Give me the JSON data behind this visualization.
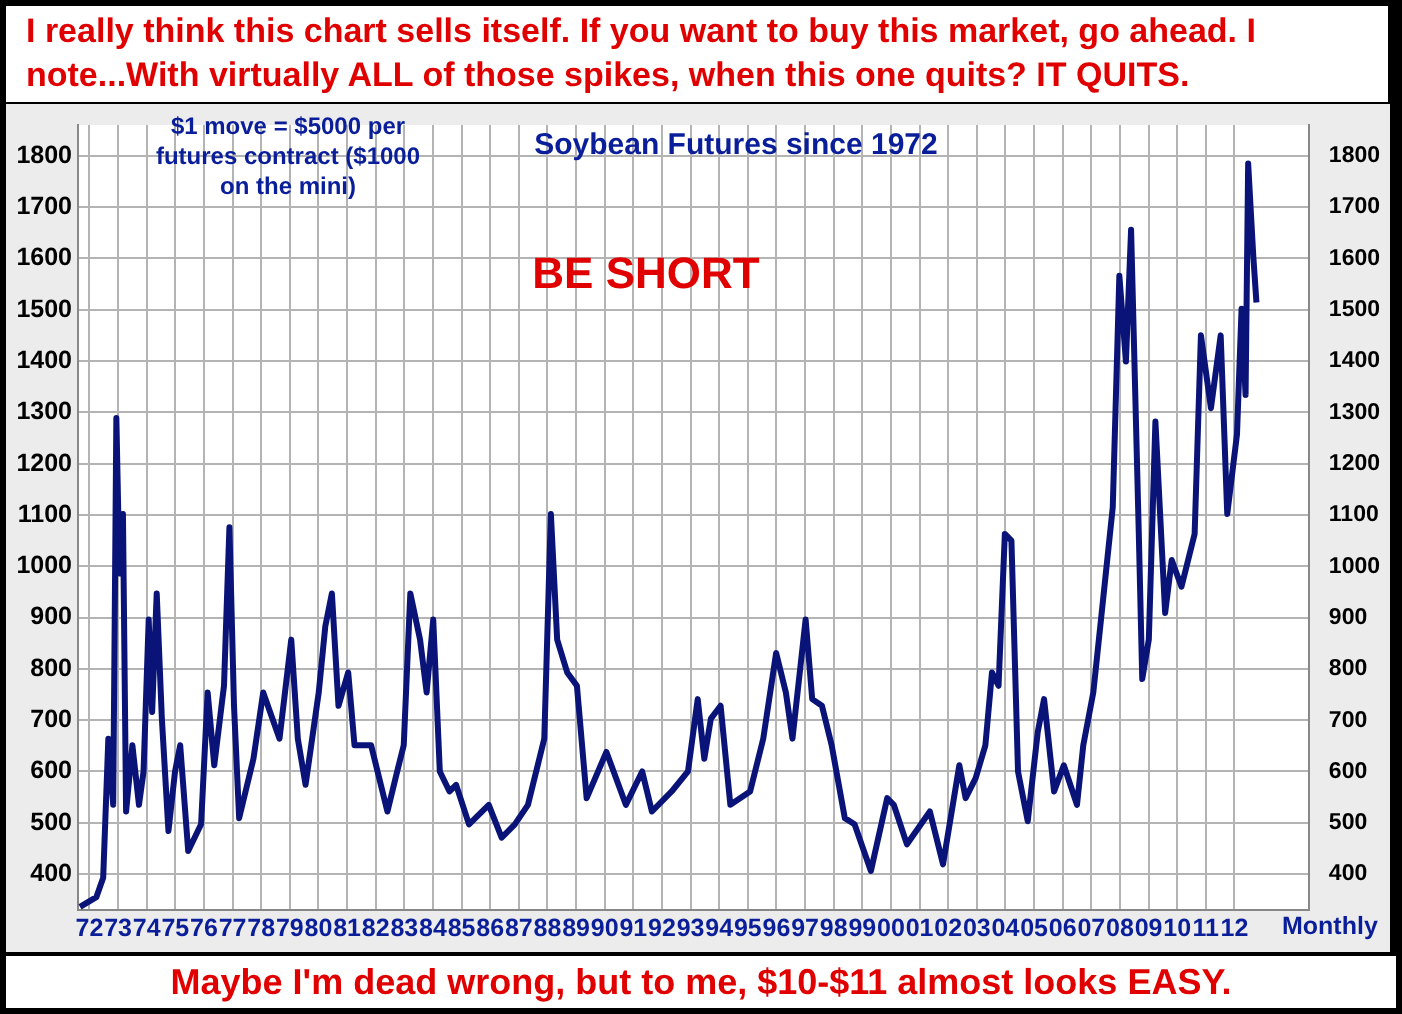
{
  "chart_data": {
    "type": "line",
    "title": "Soybean Futures since 1972",
    "xlabel": "Monthly",
    "annotations": [
      "I really think this chart sells itself. If you want to buy this market, go ahead. I note...With virtually ALL of those spikes, when this one quits? IT QUITS.",
      "$1 move = $5000 per futures contract ($1000 on the mini)",
      "BE SHORT",
      "Maybe I'm dead wrong, but to me, $10-$11 almost looks EASY."
    ],
    "series": [
      {
        "color": "#0a1478",
        "x": [
          1971.67,
          1972.24,
          1972.48,
          1972.66,
          1972.83,
          1972.94,
          1973.05,
          1973.17,
          1973.28,
          1973.5,
          1973.73,
          1973.89,
          1974.07,
          1974.19,
          1974.35,
          1974.53,
          1974.76,
          1974.99,
          1975.17,
          1975.45,
          1975.9,
          1976.13,
          1976.36,
          1976.7,
          1976.89,
          1977.05,
          1977.23,
          1977.73,
          1978.07,
          1978.64,
          1979.05,
          1979.28,
          1979.55,
          1980.01,
          1980.24,
          1980.47,
          1980.7,
          1981.04,
          1981.26,
          1981.84,
          1982.41,
          1982.75,
          1982.98,
          1983.21,
          1983.55,
          1983.78,
          1984.01,
          1984.24,
          1984.58,
          1984.81,
          1985.26,
          1985.95,
          1986.4,
          1986.86,
          1987.32,
          1987.89,
          1988.12,
          1988.34,
          1988.69,
          1989.03,
          1989.37,
          1990.06,
          1990.74,
          1991.31,
          1991.65,
          1992.34,
          1992.91,
          1993.25,
          1993.48,
          1993.71,
          1994.05,
          1994.39,
          1995.08,
          1995.54,
          1995.99,
          1996.33,
          1996.56,
          1997.02,
          1997.25,
          1997.59,
          1997.93,
          1998.39,
          1998.73,
          1999.3,
          1999.87,
          2000.1,
          2000.56,
          2001.36,
          2001.82,
          2002.39,
          2002.61,
          2002.96,
          2003.3,
          2003.53,
          2003.76,
          2003.98,
          2004.21,
          2004.44,
          2004.78,
          2005.13,
          2005.35,
          2005.7,
          2006.04,
          2006.5,
          2006.72,
          2007.07,
          2007.41,
          2007.75,
          2007.98,
          2008.21,
          2008.39,
          2008.66,
          2008.78,
          2009.01,
          2009.24,
          2009.58,
          2009.81,
          2010.15,
          2010.61,
          2010.83,
          2011.18,
          2011.52,
          2011.75,
          2012.09,
          2012.25,
          2012.39,
          2012.48,
          2012.66,
          2012.77
        ],
        "values": [
          336,
          355,
          393,
          664,
          535,
          1289,
          986,
          1102,
          522,
          651,
          535,
          600,
          896,
          716,
          947,
          703,
          484,
          600,
          651,
          445,
          497,
          754,
          612,
          767,
          1076,
          728,
          509,
          625,
          754,
          664,
          857,
          664,
          574,
          754,
          883,
          947,
          728,
          793,
          651,
          651,
          522,
          600,
          651,
          947,
          857,
          754,
          896,
          600,
          561,
          574,
          497,
          535,
          471,
          497,
          535,
          664,
          1102,
          857,
          793,
          767,
          548,
          638,
          535,
          600,
          522,
          561,
          600,
          741,
          625,
          703,
          728,
          535,
          561,
          664,
          831,
          754,
          664,
          896,
          741,
          728,
          651,
          509,
          497,
          406,
          548,
          535,
          458,
          522,
          419,
          612,
          548,
          587,
          651,
          793,
          767,
          1063,
          1050,
          600,
          503,
          677,
          741,
          561,
          612,
          535,
          651,
          754,
          934,
          1115,
          1566,
          1399,
          1656,
          1063,
          780,
          857,
          1282,
          909,
          1012,
          960,
          1063,
          1450,
          1308,
          1450,
          1102,
          1257,
          1502,
          1334,
          1785,
          1604,
          1514
        ]
      }
    ],
    "xlim": [
      1971.6,
      2014.6
    ],
    "xticks": [
      {
        "value": 1972,
        "label": "72"
      },
      {
        "value": 1973,
        "label": "73"
      },
      {
        "value": 1974,
        "label": "74"
      },
      {
        "value": 1975,
        "label": "75"
      },
      {
        "value": 1976,
        "label": "76"
      },
      {
        "value": 1977,
        "label": "77"
      },
      {
        "value": 1978,
        "label": "78"
      },
      {
        "value": 1979,
        "label": "79"
      },
      {
        "value": 1980,
        "label": "80"
      },
      {
        "value": 1981,
        "label": "81"
      },
      {
        "value": 1982,
        "label": "82"
      },
      {
        "value": 1983,
        "label": "83"
      },
      {
        "value": 1984,
        "label": "84"
      },
      {
        "value": 1985,
        "label": "85"
      },
      {
        "value": 1986,
        "label": "86"
      },
      {
        "value": 1987,
        "label": "87"
      },
      {
        "value": 1988,
        "label": "88"
      },
      {
        "value": 1989,
        "label": "89"
      },
      {
        "value": 1990,
        "label": "90"
      },
      {
        "value": 1991,
        "label": "91"
      },
      {
        "value": 1992,
        "label": "92"
      },
      {
        "value": 1993,
        "label": "93"
      },
      {
        "value": 1994,
        "label": "94"
      },
      {
        "value": 1995,
        "label": "95"
      },
      {
        "value": 1996,
        "label": "96"
      },
      {
        "value": 1997,
        "label": "97"
      },
      {
        "value": 1998,
        "label": "98"
      },
      {
        "value": 1999,
        "label": "99"
      },
      {
        "value": 2000,
        "label": "00"
      },
      {
        "value": 2001,
        "label": "01"
      },
      {
        "value": 2002,
        "label": "02"
      },
      {
        "value": 2003,
        "label": "03"
      },
      {
        "value": 2004,
        "label": "04"
      },
      {
        "value": 2005,
        "label": "05"
      },
      {
        "value": 2006,
        "label": "06"
      },
      {
        "value": 2007,
        "label": "07"
      },
      {
        "value": 2008,
        "label": "08"
      },
      {
        "value": 2009,
        "label": "09"
      },
      {
        "value": 2010,
        "label": "10"
      },
      {
        "value": 2011,
        "label": "11"
      },
      {
        "value": 2012,
        "label": "12"
      }
    ],
    "ylim": [
      330,
      1860
    ],
    "yticks": [
      400,
      500,
      600,
      700,
      800,
      900,
      1000,
      1100,
      1200,
      1300,
      1400,
      1500,
      1600,
      1700,
      1800
    ],
    "y2lim": [
      330,
      1860
    ],
    "y2ticks": [
      400,
      500,
      600,
      700,
      800,
      900,
      1000,
      1100,
      1200,
      1300,
      1400,
      1500,
      1600,
      1700,
      1800
    ],
    "grid": true,
    "legend": false,
    "marker": "none",
    "line_style": "solid"
  }
}
